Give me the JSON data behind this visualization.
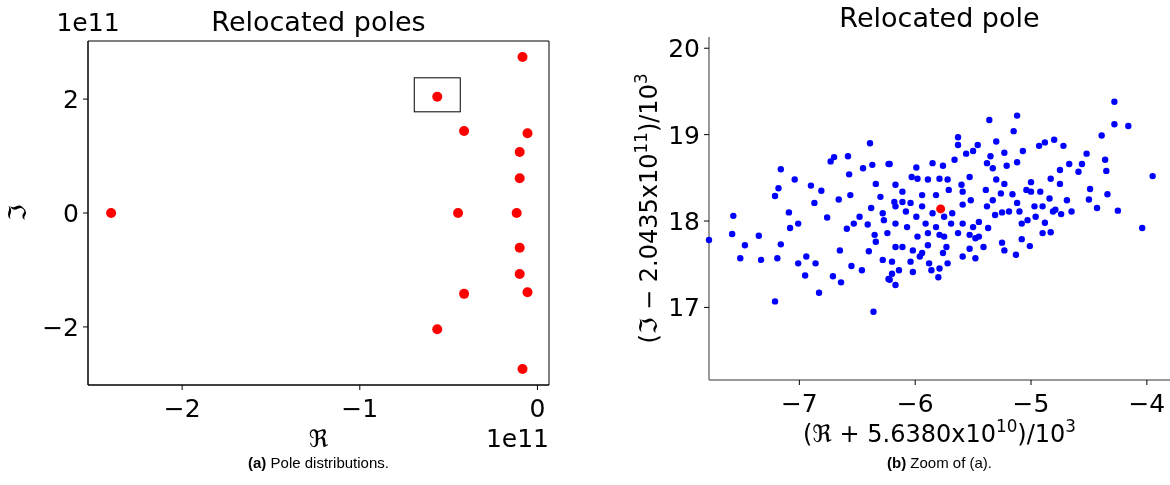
{
  "chart_data": [
    {
      "type": "scatter",
      "title": "Relocated poles",
      "xlabel": "ℜ",
      "ylabel": "ℑ",
      "xlim": [
        -2.53,
        0.065
      ],
      "ylim": [
        -3.02,
        3.02
      ],
      "xticks": [
        -2,
        -1,
        0
      ],
      "yticks": [
        -2,
        0,
        2
      ],
      "marker": "circle",
      "annotations": [
        "1e11",
        "1e11",
        "(a) Pole distributions."
      ],
      "series": [
        {
          "color": "#ff0000",
          "x": [
            -0.084,
            -0.564,
            -0.413,
            -0.056,
            -0.1,
            -0.1,
            -2.4,
            -0.447,
            -0.117,
            -0.1,
            -0.1,
            -0.413,
            -0.056,
            -0.564,
            -0.084
          ],
          "values": [
            2.74,
            2.04,
            1.44,
            1.4,
            1.07,
            0.61,
            0,
            0,
            0,
            -0.61,
            -1.07,
            -1.42,
            -1.39,
            -2.04,
            -2.74
          ]
        }
      ]
    },
    {
      "type": "scatter",
      "title": "Relocated pole",
      "xlabel": "(ℜ + 5.6380x10$^{10}$)/10$^{3}$",
      "ylabel": "(ℑ − 2.0435x10$^{11}$)/10$^{3}$",
      "xlim": [
        -7.78,
        -3.8
      ],
      "ylim": [
        16.16,
        20.13
      ],
      "xticks": [
        -7,
        -6,
        -5,
        -4
      ],
      "yticks": [
        17,
        18,
        19,
        20
      ],
      "marker": "circle",
      "annotations": [
        "(b) Zoom of (a)."
      ],
      "series": [
        {
          "color": "#0000ff",
          "x": [
            -7.78,
            -7.57,
            -7.58,
            -7.47,
            -7.51,
            -7.33,
            -7.35,
            -7.21,
            -7.18,
            -7.16,
            -7.21,
            -7.19,
            -7.16,
            -7.09,
            -7.08,
            -7.04,
            -7.01,
            -7.01,
            -6.94,
            -6.95,
            -6.9,
            -6.87,
            -6.86,
            -6.83,
            -6.81,
            -6.76,
            -6.73,
            -6.7,
            -6.71,
            -6.64,
            -6.58,
            -6.57,
            -6.65,
            -6.66,
            -6.59,
            -6.56,
            -6.55,
            -6.46,
            -6.45,
            -6.39,
            -6.37,
            -6.36,
            -6.34,
            -6.41,
            -6.48,
            -6.53,
            -6.34,
            -6.4,
            -6.23,
            -6.23,
            -4.28,
            -4.28,
            -4.16,
            -3.95,
            -4.04,
            -4.25,
            -4.39,
            -5.12,
            -5.36,
            -5.15,
            -4.52,
            -4.36,
            -4.35,
            -4.34,
            -4.43,
            -4.5,
            -4.49,
            -4.56,
            -4.67,
            -4.59,
            -4.8,
            -4.88,
            -4.93,
            -4.72,
            -4.75,
            -4.83,
            -4.75,
            -4.65,
            -4.74,
            -4.79,
            -4.84,
            -4.83,
            -4.9,
            -4.88,
            -4.92,
            -5.01,
            -5.08,
            -5.13,
            -5.23,
            -5.25,
            -5.08,
            -5.0,
            -5.07,
            -5.3,
            -5.23,
            -5.35,
            -5.12,
            -5.21,
            -5.33,
            -5.38,
            -5.3,
            -5.23,
            -5.16,
            -5.26,
            -5.39,
            -5.33,
            -5.12,
            -5.1,
            -5.19,
            -5.31,
            -5.38,
            -5.45,
            -5.37,
            -5.45,
            -5.48,
            -5.53,
            -5.48,
            -5.59,
            -5.63,
            -5.63,
            -5.56,
            -5.46,
            -5.5,
            -5.66,
            -5.76,
            -5.85,
            -5.99,
            -6.22,
            -5.53,
            -5.6,
            -5.72,
            -5.79,
            -5.89,
            -5.98,
            -6.03,
            -6.17,
            -6.11,
            -5.94,
            -5.82,
            -5.71,
            -5.59,
            -5.52,
            -5.59,
            -5.68,
            -5.75,
            -5.85,
            -5.94,
            -6.04,
            -6.11,
            -6.18,
            -6.3,
            -6.38,
            -6.28,
            -6.17,
            -6.08,
            -5.99,
            -5.91,
            -5.82,
            -5.69,
            -5.59,
            -5.5,
            -5.53,
            -5.63,
            -5.75,
            -5.79,
            -5.89,
            -5.98,
            -6.07,
            -6.17,
            -6.27,
            -6.35,
            -6.24,
            -6.11,
            -6.02,
            -5.94,
            -5.89,
            -5.73,
            -5.76,
            -6.17,
            -6.28,
            -6.2,
            -6.04,
            -5.96,
            -5.88,
            -5.72,
            -6.14,
            -6.02,
            -5.86,
            -5.79,
            -6.2,
            -6.22,
            -6.17,
            -5.8,
            -5.41,
            -5.25,
            -5.03,
            -4.96,
            -4.9,
            -4.97,
            -5.0,
            -5.04,
            -4.69,
            -4.81
          ],
          "values": [
            17.78,
            18.06,
            17.85,
            17.72,
            17.57,
            17.55,
            17.83,
            18.29,
            18.38,
            18.6,
            17.07,
            17.57,
            17.73,
            18.1,
            17.92,
            18.48,
            17.97,
            17.51,
            17.59,
            17.37,
            18.41,
            18.21,
            17.51,
            17.17,
            18.35,
            18.04,
            18.69,
            18.74,
            17.36,
            17.29,
            18.75,
            18.54,
            17.66,
            18.25,
            17.91,
            18.3,
            17.48,
            17.43,
            18.61,
            18.9,
            18.65,
            16.95,
            18.43,
            17.96,
            18.05,
            17.97,
            17.76,
            17.65,
            18.66,
            17.33,
            19.38,
            19.12,
            19.1,
            18.52,
            17.92,
            18.12,
            18.99,
            19.22,
            19.17,
            19.04,
            18.78,
            18.71,
            18.58,
            18.31,
            18.15,
            18.25,
            18.37,
            18.66,
            18.66,
            18.57,
            18.94,
            18.91,
            18.87,
            18.87,
            18.59,
            18.49,
            18.43,
            18.11,
            18.08,
            18.13,
            18.26,
            17.87,
            17.86,
            17.98,
            18.34,
            17.71,
            17.79,
            17.61,
            17.66,
            17.75,
            17.97,
            18.45,
            18.81,
            18.92,
            18.79,
            18.75,
            18.68,
            18.64,
            18.61,
            18.67,
            18.48,
            18.43,
            18.31,
            18.32,
            18.36,
            18.24,
            18.21,
            18.11,
            18.11,
            18.07,
            18.17,
            17.99,
            17.92,
            17.82,
            17.8,
            17.68,
            17.57,
            17.59,
            18.88,
            18.97,
            18.78,
            18.88,
            18.81,
            18.71,
            18.64,
            18.67,
            18.62,
            18.66,
            18.51,
            18.42,
            18.48,
            18.49,
            18.48,
            18.49,
            18.51,
            18.42,
            18.34,
            18.3,
            18.3,
            18.36,
            18.34,
            18.24,
            18.19,
            18.09,
            18.05,
            18.09,
            18.17,
            18.21,
            18.22,
            18.22,
            18.28,
            18.15,
            18.09,
            18.17,
            18.11,
            18.05,
            17.97,
            17.93,
            17.97,
            17.97,
            17.93,
            17.84,
            17.86,
            17.82,
            17.84,
            17.86,
            17.82,
            17.93,
            17.97,
            18.01,
            17.84,
            17.86,
            17.7,
            17.66,
            17.63,
            17.72,
            17.7,
            17.63,
            17.7,
            17.55,
            17.53,
            17.53,
            17.59,
            17.51,
            17.51,
            17.43,
            17.41,
            17.43,
            17.45,
            17.39,
            17.32,
            17.26,
            17.35,
            17.7,
            18.1,
            18.01,
            18.05,
            18.17,
            18.17,
            18.34,
            18.36,
            18.24,
            18.11
          ]
        },
        {
          "color": "#ff0000",
          "x": [
            -5.78
          ],
          "values": [
            18.14
          ]
        }
      ]
    }
  ]
}
